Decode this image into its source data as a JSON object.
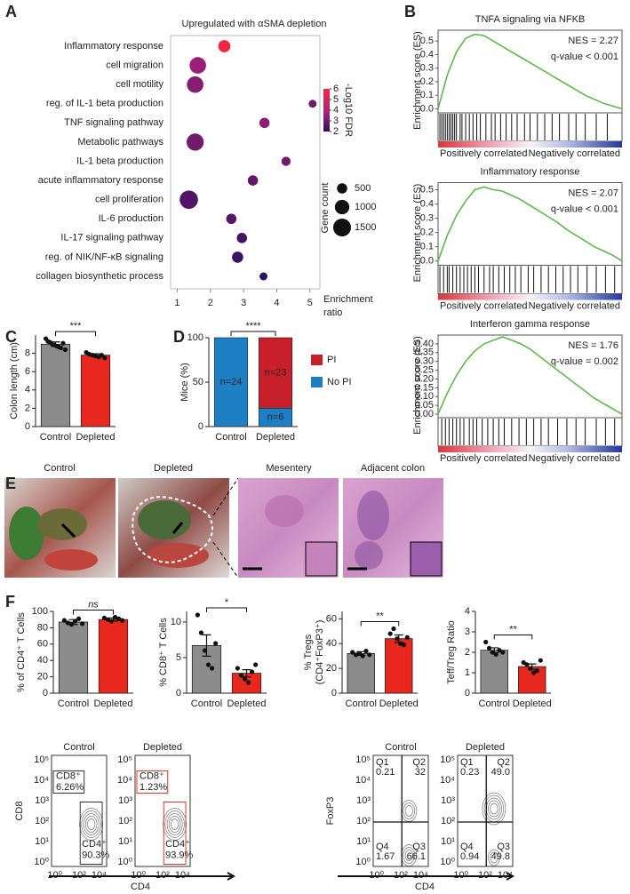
{
  "panels": [
    "A",
    "B",
    "C",
    "D",
    "E",
    "F"
  ],
  "chart_data": [
    {
      "type": "bubble",
      "title": "Upregulated with αSMA depletion",
      "categories": [
        "Inflammatory response",
        "cell migration",
        "cell motility",
        "reg. of IL-1 beta production",
        "TNF signaling pathway",
        "Metabolic pathways",
        "IL-1 beta production",
        "acute inflammatory response",
        "cell proliferation",
        "IL-6 production",
        "IL-17 signaling pathway",
        "reg. of NIK/NF-κB signaling",
        "collagen biosynthetic process"
      ],
      "values": [
        2.42,
        1.62,
        1.54,
        5.08,
        3.63,
        1.54,
        4.28,
        3.28,
        1.35,
        2.63,
        2.95,
        2.82,
        3.6
      ],
      "sizes": [
        700,
        1300,
        1300,
        300,
        500,
        1400,
        400,
        500,
        1600,
        500,
        500,
        600,
        300
      ],
      "fdr": [
        6,
        3.6,
        3.3,
        3,
        3.4,
        3,
        3,
        2.8,
        2.5,
        2.6,
        2.3,
        2.2,
        2
      ],
      "xlim": [
        0.8,
        5.3
      ],
      "xticks": [
        1,
        2,
        3,
        4,
        5
      ],
      "xlabel": "Enrichment ratio",
      "color_label": "-Log10 FDR",
      "color_ticks": [
        2,
        3,
        4,
        5,
        6
      ],
      "colors": [
        "#2d1160",
        "#b8237a",
        "#f2263f"
      ],
      "size_label": "Gene count",
      "size_ticks": [
        500,
        1000,
        1500
      ]
    },
    {
      "type": "line",
      "title": "TNFA signaling via NFKB",
      "annotations": [
        "NES = 2.27",
        "q-value < 0.001"
      ],
      "ylabel": "Enrichment score (ES)",
      "color": "#5fb84a",
      "values": [
        0,
        0.25,
        0.42,
        0.52,
        0.55,
        0.54,
        0.5,
        0.46,
        0.42,
        0.38,
        0.34,
        0.3,
        0.26,
        0.22,
        0.18,
        0.14,
        0.1,
        0.07,
        0.04,
        0.02,
        0
      ],
      "ylim": [
        -0.03,
        0.58
      ],
      "yticks": [
        {
          "value": 0,
          "label": "0.0"
        },
        0.1,
        0.2,
        0.3,
        0.4,
        0.5
      ],
      "hits": [
        0.01,
        0.02,
        0.03,
        0.04,
        0.05,
        0.06,
        0.07,
        0.08,
        0.09,
        0.1,
        0.12,
        0.13,
        0.15,
        0.17,
        0.19,
        0.21,
        0.23,
        0.26,
        0.29,
        0.31,
        0.34,
        0.37,
        0.4,
        0.43,
        0.47,
        0.5,
        0.54,
        0.58,
        0.62,
        0.66,
        0.71,
        0.75,
        0.8,
        0.86,
        0.92
      ],
      "rank_labels": [
        "Positively correlated",
        "Negatively correlated"
      ]
    },
    {
      "type": "line",
      "title": "Inflammatory response",
      "annotations": [
        "NES = 2.07",
        "q-value < 0.001"
      ],
      "ylabel": "Enrichment score (ES)",
      "color": "#5fb84a",
      "values": [
        0,
        0.18,
        0.32,
        0.42,
        0.5,
        0.52,
        0.5,
        0.49,
        0.46,
        0.43,
        0.39,
        0.35,
        0.31,
        0.27,
        0.22,
        0.18,
        0.14,
        0.1,
        0.07,
        0.04,
        0
      ],
      "ylim": [
        -0.03,
        0.55
      ],
      "yticks": [
        {
          "value": 0,
          "label": "0.0"
        },
        0.1,
        0.2,
        0.3,
        0.4,
        0.5
      ],
      "hits": [
        0.01,
        0.03,
        0.05,
        0.06,
        0.08,
        0.1,
        0.12,
        0.14,
        0.16,
        0.18,
        0.2,
        0.22,
        0.25,
        0.28,
        0.3,
        0.33,
        0.36,
        0.39,
        0.42,
        0.45,
        0.49,
        0.52,
        0.56,
        0.6,
        0.64,
        0.68,
        0.72,
        0.76,
        0.81,
        0.86,
        0.91,
        0.96
      ],
      "rank_labels": [
        "Positively correlated",
        "Negatively correlated"
      ]
    },
    {
      "type": "line",
      "title": "Interferon gamma response",
      "annotations": [
        "NES = 1.76",
        "q-value = 0.002"
      ],
      "ylabel": "Enrichment score (ES)",
      "color": "#5fb84a",
      "values": [
        0,
        0.12,
        0.22,
        0.3,
        0.36,
        0.4,
        0.42,
        0.44,
        0.42,
        0.4,
        0.37,
        0.33,
        0.29,
        0.25,
        0.21,
        0.17,
        0.13,
        0.09,
        0.06,
        0.03,
        0
      ],
      "ylim": [
        -0.02,
        0.45
      ],
      "yticks": [
        {
          "value": 0,
          "label": "0.00"
        },
        0.05,
        {
          "value": 0.1,
          "label": "0.10"
        },
        0.15,
        {
          "value": 0.2,
          "label": "0.20"
        },
        0.25,
        {
          "value": 0.3,
          "label": "0.30"
        },
        0.35,
        {
          "value": 0.4,
          "label": "0.40"
        }
      ],
      "hits": [
        0.02,
        0.04,
        0.06,
        0.08,
        0.1,
        0.12,
        0.14,
        0.17,
        0.19,
        0.21,
        0.24,
        0.27,
        0.3,
        0.33,
        0.36,
        0.4,
        0.44,
        0.48,
        0.52,
        0.56,
        0.6,
        0.65,
        0.7,
        0.75,
        0.8,
        0.86,
        0.91,
        0.96
      ],
      "rank_labels": [
        "Positively correlated",
        "Negatively correlated"
      ]
    },
    {
      "type": "bar",
      "ylabel": "Colon length (cm)",
      "categories": [
        "Control",
        "Depleted"
      ],
      "values": [
        9.0,
        7.8
      ],
      "errors": [
        0.25,
        0.15
      ],
      "points": [
        [
          9.6,
          9.3,
          9.2,
          9.0,
          8.9,
          8.8,
          8.7,
          8.6,
          9.1,
          8.4
        ],
        [
          8.1,
          7.9,
          7.8,
          7.7,
          7.6,
          7.8,
          7.5
        ]
      ],
      "colors": [
        "#8c8c8c",
        "#e8271e"
      ],
      "ylim": [
        0,
        10
      ],
      "yticks": [
        0,
        2,
        4,
        6,
        8
      ],
      "significance": "***"
    },
    {
      "type": "stacked_bar",
      "ylabel": "Mice (%)",
      "categories": [
        "Control",
        "Depleted"
      ],
      "series": [
        {
          "name": "No PI",
          "color": "#1f7fc4",
          "values": [
            100,
            20.7
          ]
        },
        {
          "name": "PI",
          "color": "#c8202a",
          "values": [
            0,
            79.3
          ]
        }
      ],
      "annotations": [
        "n=24",
        "n=23",
        "n=6"
      ],
      "ylim": [
        0,
        100
      ],
      "yticks": [
        0,
        50,
        100
      ],
      "significance": "****"
    },
    {
      "type": "bar",
      "ylabel": "% of CD4⁺ T Cells",
      "categories": [
        "Control",
        "Depleted"
      ],
      "values": [
        87,
        90
      ],
      "errors": [
        3,
        2
      ],
      "points": [
        [
          89,
          86,
          84,
          88,
          91,
          85
        ],
        [
          92,
          90,
          88,
          93,
          91,
          89
        ]
      ],
      "colors": [
        "#8c8c8c",
        "#e8271e"
      ],
      "ylim": [
        0,
        100
      ],
      "yticks": [
        0,
        20,
        40,
        60,
        80,
        100
      ],
      "significance": "ns"
    },
    {
      "type": "bar",
      "ylabel": "% CD8⁺ T Cells",
      "categories": [
        "Control",
        "Depleted"
      ],
      "values": [
        6.7,
        2.8
      ],
      "errors": [
        1.5,
        0.5
      ],
      "points": [
        [
          11,
          8.5,
          6,
          4,
          3.5,
          7
        ],
        [
          3.5,
          2.5,
          2,
          1.5,
          3,
          4
        ]
      ],
      "colors": [
        "#8c8c8c",
        "#e8271e"
      ],
      "ylim": [
        0,
        11.5
      ],
      "yticks": [
        0,
        5,
        10
      ],
      "significance": "*"
    },
    {
      "type": "bar",
      "ylabel": [
        "% Tregs",
        "(CD4⁺FoxP3⁺)"
      ],
      "categories": [
        "Control",
        "Depleted"
      ],
      "values": [
        32,
        44
      ],
      "errors": [
        1.5,
        3
      ],
      "points": [
        [
          33,
          31,
          32,
          30,
          34,
          31
        ],
        [
          48,
          52,
          44,
          40,
          39,
          45
        ]
      ],
      "colors": [
        "#8c8c8c",
        "#e8271e"
      ],
      "ylim": [
        0,
        66
      ],
      "yticks": [
        0,
        20,
        40,
        60
      ],
      "significance": "**"
    },
    {
      "type": "bar",
      "ylabel": "Teff/Treg Ratio",
      "categories": [
        "Control",
        "Depleted"
      ],
      "values": [
        2.1,
        1.3
      ],
      "errors": [
        0.12,
        0.13
      ],
      "points": [
        [
          2.5,
          2.2,
          2.0,
          1.9,
          2.1,
          2.0
        ],
        [
          1.5,
          1.4,
          1.2,
          1.0,
          1.1,
          1.6
        ]
      ],
      "colors": [
        "#8c8c8c",
        "#e8271e"
      ],
      "ylim": [
        0,
        4
      ],
      "yticks": [
        0,
        1,
        2,
        3,
        4
      ],
      "significance": "**"
    }
  ],
  "panel_e": {
    "photos": [
      "Control",
      "Depleted"
    ],
    "histology": [
      "Mesentery",
      "Adjacent colon"
    ]
  },
  "flow": {
    "yticks": [
      "10⁰",
      "10¹",
      "10²",
      "10³",
      "10⁴",
      "10⁵"
    ],
    "xticks": [
      "10⁰",
      "10²",
      "10⁴"
    ],
    "left": {
      "ylabel": "CD8",
      "xlabel": "CD4",
      "plots": [
        {
          "title": "Control",
          "gates": [
            {
              "name": "CD8⁺",
              "pct": "6.26%"
            },
            {
              "name": "CD4⁺",
              "pct": "90.3%"
            }
          ]
        },
        {
          "title": "Depleted",
          "gates": [
            {
              "name": "CD8⁺",
              "pct": "1.23%"
            },
            {
              "name": "CD4⁺",
              "pct": "93.9%"
            }
          ]
        }
      ]
    },
    "right": {
      "ylabel": "FoxP3",
      "xlabel": "CD4",
      "plots": [
        {
          "title": "Control",
          "quadrants": [
            [
              "Q1",
              "0.21"
            ],
            [
              "Q2",
              "32"
            ],
            [
              "Q4",
              "1.67"
            ],
            [
              "Q3",
              "66.1"
            ]
          ]
        },
        {
          "title": "Depleted",
          "quadrants": [
            [
              "Q1",
              "0.23"
            ],
            [
              "Q2",
              "49.0"
            ],
            [
              "Q4",
              "0.94"
            ],
            [
              "Q3",
              "49.8"
            ]
          ]
        }
      ]
    }
  }
}
